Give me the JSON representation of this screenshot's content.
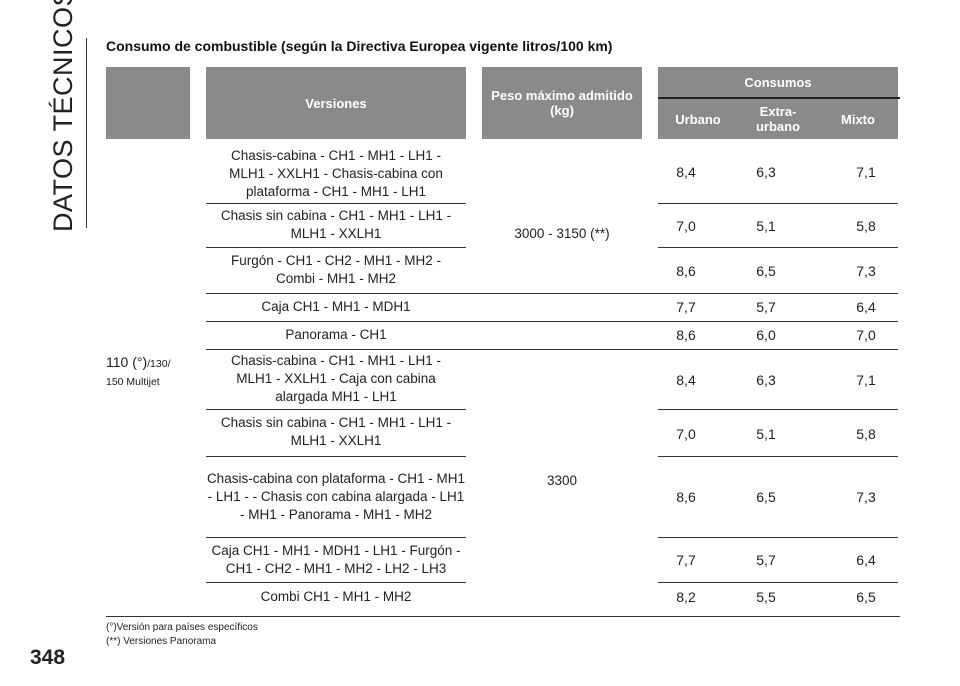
{
  "section_title": "DATOS TÉCNICOS",
  "page_number": "348",
  "title": "Consumo de combustible (según la Directiva Europea vigente litros/100 km)",
  "headers": {
    "versiones": "Versiones",
    "peso": "Peso máximo admitido (kg)",
    "consumos": "Consumos",
    "urbano": "Urbano",
    "extra_urbano": "Extra-urbano",
    "mixto": "Mixto"
  },
  "engine": {
    "main": "110 (°)",
    "sub": "/130/",
    "sub2": "150 Multijet"
  },
  "groups": [
    {
      "weight": "3000 - 3150 (**)"
    },
    {
      "weight": "3300"
    }
  ],
  "rows": [
    {
      "version": "Chasis-cabina - CH1 - MH1 - LH1 - MLH1 - XXLH1 - Chasis-cabina con plataforma - CH1 - MH1 - LH1",
      "urbano": "8,4",
      "extra": "6,3",
      "mixto": "7,1"
    },
    {
      "version": "Chasis sin cabina - CH1 - MH1 - LH1 - MLH1 - XXLH1",
      "urbano": "7,0",
      "extra": "5,1",
      "mixto": "5,8"
    },
    {
      "version": "Furgón - CH1 - CH2 - MH1 - MH2 - Combi - MH1 - MH2",
      "urbano": "8,6",
      "extra": "6,5",
      "mixto": "7,3"
    },
    {
      "version": "Caja CH1 - MH1 - MDH1",
      "urbano": "7,7",
      "extra": "5,7",
      "mixto": "6,4"
    },
    {
      "version": "Panorama - CH1",
      "urbano": "8,6",
      "extra": "6,0",
      "mixto": "7,0"
    },
    {
      "version": "Chasis-cabina - CH1 - MH1 - LH1 - MLH1 - XXLH1 - Caja con cabina alargada MH1 - LH1",
      "urbano": "8,4",
      "extra": "6,3",
      "mixto": "7,1"
    },
    {
      "version": "Chasis sin cabina - CH1 - MH1 - LH1 - MLH1 - XXLH1",
      "urbano": "7,0",
      "extra": "5,1",
      "mixto": "5,8"
    },
    {
      "version": "Chasis-cabina con plataforma - CH1 - MH1 - LH1 - - Chasis con cabina alargada - LH1 - MH1 - Panorama - MH1 - MH2",
      "urbano": "8,6",
      "extra": "6,5",
      "mixto": "7,3"
    },
    {
      "version": "Caja CH1 - MH1 - MDH1 - LH1 - Furgón - CH1 - CH2 - MH1 - MH2 - LH2 - LH3",
      "urbano": "7,7",
      "extra": "5,7",
      "mixto": "6,4"
    },
    {
      "version": "Combi CH1 - MH1 - MH2",
      "urbano": "8,2",
      "extra": "5,5",
      "mixto": "6,5"
    }
  ],
  "footnotes": [
    "(°)Versión para países específicos",
    "(**) Versiones Panorama"
  ]
}
